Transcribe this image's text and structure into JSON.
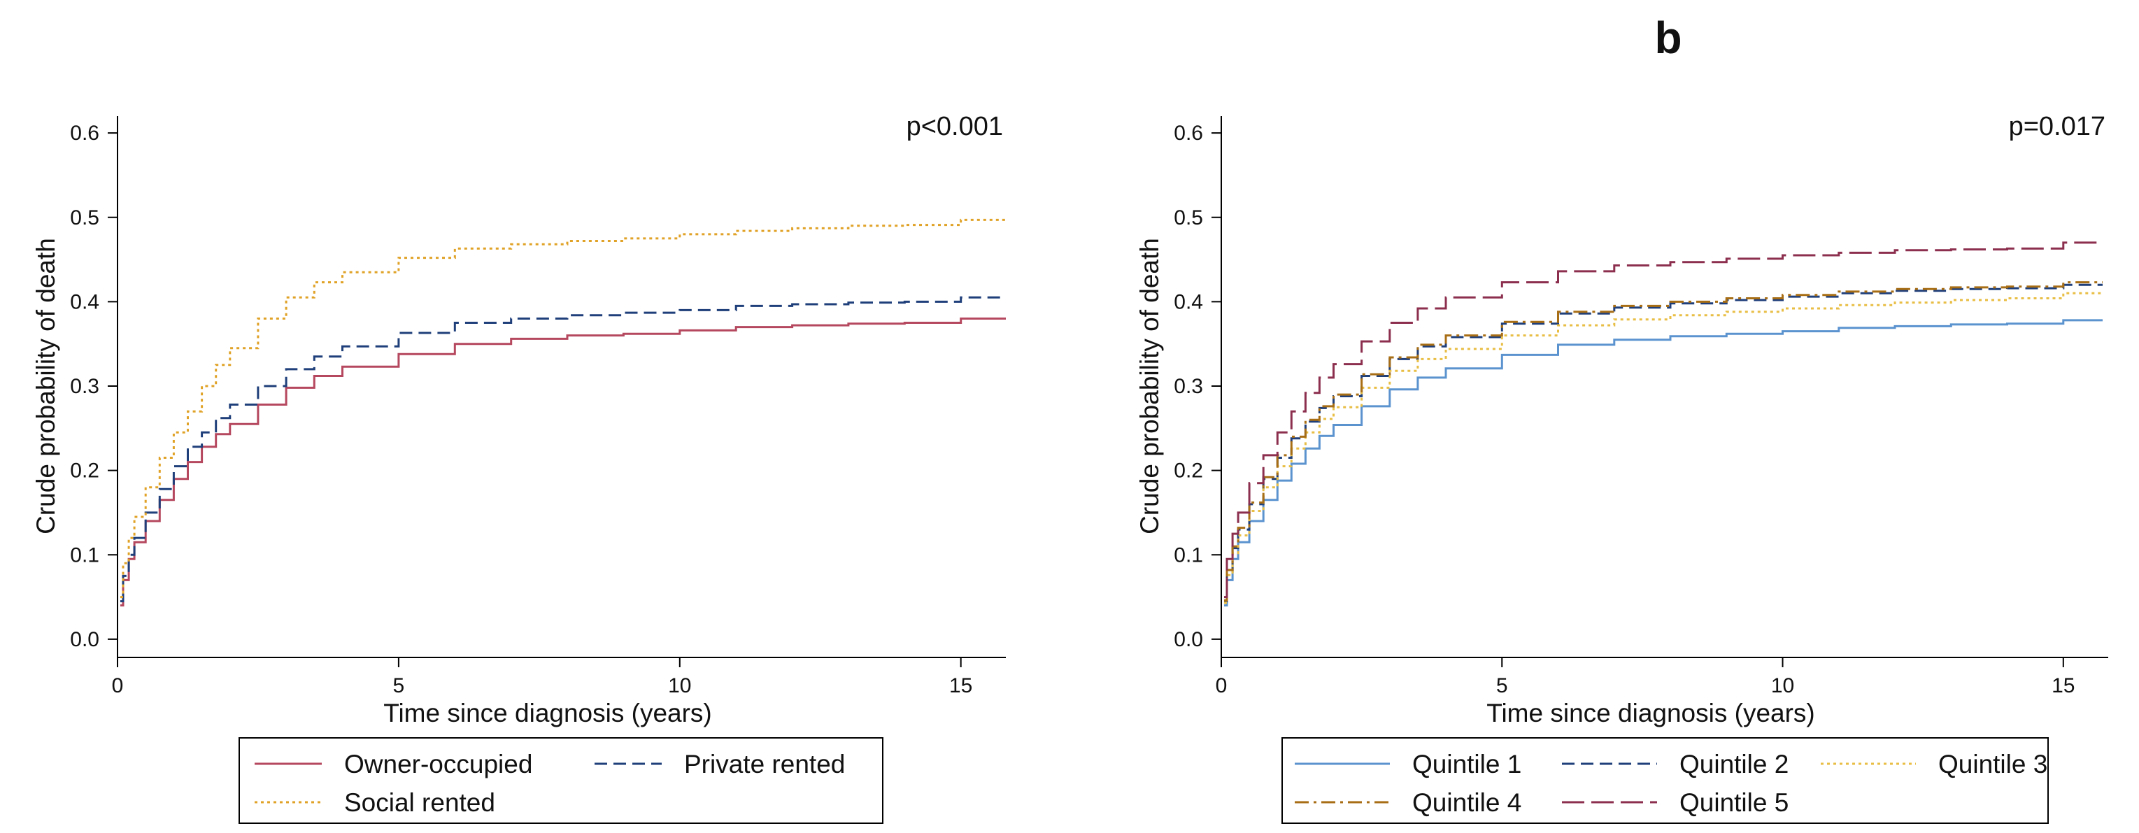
{
  "colors": {
    "owner_occupied": "#b5475e",
    "private_rented": "#1f3f7a",
    "social_rented": "#e0a227",
    "quintile_1": "#5b93cf",
    "quintile_2": "#1f3f7a",
    "quintile_3": "#e8be45",
    "quintile_4": "#a86e16",
    "quintile_5": "#8c2f4e"
  },
  "chart_data": [
    {
      "type": "line",
      "step": true,
      "panel_label": "",
      "annotation": "p<0.001",
      "xlabel": "Time since diagnosis (years)",
      "ylabel": "Crude probability of death",
      "xlim": [
        0,
        15.8
      ],
      "ylim": [
        -0.02,
        0.62
      ],
      "xticks": [
        0,
        5,
        10,
        15
      ],
      "yticks": [
        "0.0",
        "0.1",
        "0.2",
        "0.3",
        "0.4",
        "0.5",
        "0.6"
      ],
      "grid": false,
      "legend_position": "bottom",
      "legend_columns": 2,
      "series": [
        {
          "name": "Owner-occupied",
          "color": "#b5475e",
          "dash": "none",
          "x": [
            0.05,
            0.1,
            0.2,
            0.3,
            0.5,
            0.75,
            1,
            1.25,
            1.5,
            1.75,
            2,
            2.5,
            3,
            3.5,
            4,
            5,
            6,
            7,
            8,
            9,
            10,
            11,
            12,
            13,
            14,
            15,
            15.8
          ],
          "y": [
            0.04,
            0.07,
            0.095,
            0.115,
            0.14,
            0.165,
            0.19,
            0.21,
            0.228,
            0.243,
            0.255,
            0.278,
            0.298,
            0.312,
            0.323,
            0.338,
            0.35,
            0.356,
            0.36,
            0.362,
            0.366,
            0.37,
            0.372,
            0.374,
            0.375,
            0.38,
            0.38
          ]
        },
        {
          "name": "Private rented",
          "color": "#1f3f7a",
          "dash": "dashed",
          "x": [
            0.05,
            0.1,
            0.2,
            0.3,
            0.5,
            0.75,
            1,
            1.25,
            1.5,
            1.75,
            2,
            2.5,
            3,
            3.5,
            4,
            5,
            6,
            7,
            8,
            9,
            10,
            11,
            12,
            13,
            14,
            15,
            15.8
          ],
          "y": [
            0.045,
            0.075,
            0.1,
            0.12,
            0.15,
            0.178,
            0.205,
            0.228,
            0.245,
            0.262,
            0.278,
            0.3,
            0.32,
            0.335,
            0.347,
            0.363,
            0.375,
            0.38,
            0.384,
            0.387,
            0.39,
            0.395,
            0.397,
            0.399,
            0.4,
            0.405,
            0.405
          ]
        },
        {
          "name": "Social rented",
          "color": "#e0a227",
          "dash": "dotted",
          "x": [
            0.05,
            0.1,
            0.2,
            0.3,
            0.5,
            0.75,
            1,
            1.25,
            1.5,
            1.75,
            2,
            2.5,
            3,
            3.5,
            4,
            5,
            6,
            7,
            8,
            9,
            10,
            11,
            12,
            13,
            14,
            15,
            15.8
          ],
          "y": [
            0.05,
            0.09,
            0.12,
            0.145,
            0.18,
            0.215,
            0.245,
            0.27,
            0.3,
            0.325,
            0.345,
            0.38,
            0.405,
            0.423,
            0.435,
            0.452,
            0.463,
            0.468,
            0.472,
            0.475,
            0.48,
            0.484,
            0.487,
            0.49,
            0.491,
            0.497,
            0.497
          ]
        }
      ]
    },
    {
      "type": "line",
      "step": true,
      "panel_label": "b",
      "annotation": "p=0.017",
      "xlabel": "Time since diagnosis (years)",
      "ylabel": "Crude probability of death",
      "xlim": [
        0,
        15.8
      ],
      "ylim": [
        -0.02,
        0.62
      ],
      "xticks": [
        0,
        5,
        10,
        15
      ],
      "yticks": [
        "0.0",
        "0.1",
        "0.2",
        "0.3",
        "0.4",
        "0.5",
        "0.6"
      ],
      "grid": false,
      "legend_position": "bottom",
      "legend_columns": 3,
      "series": [
        {
          "name": "Quintile 1",
          "color": "#5b93cf",
          "dash": "none",
          "x": [
            0.05,
            0.1,
            0.2,
            0.3,
            0.5,
            0.75,
            1,
            1.25,
            1.5,
            1.75,
            2,
            2.5,
            3,
            3.5,
            4,
            5,
            6,
            7,
            8,
            9,
            10,
            11,
            12,
            13,
            14,
            15,
            15.7
          ],
          "y": [
            0.04,
            0.07,
            0.095,
            0.115,
            0.14,
            0.165,
            0.188,
            0.208,
            0.226,
            0.241,
            0.254,
            0.276,
            0.296,
            0.31,
            0.321,
            0.337,
            0.349,
            0.355,
            0.359,
            0.362,
            0.365,
            0.369,
            0.371,
            0.373,
            0.374,
            0.378,
            0.378
          ]
        },
        {
          "name": "Quintile 2",
          "color": "#1f3f7a",
          "dash": "dashed",
          "x": [
            0.05,
            0.1,
            0.2,
            0.3,
            0.5,
            0.75,
            1,
            1.25,
            1.5,
            1.75,
            2,
            2.5,
            3,
            3.5,
            4,
            5,
            6,
            7,
            8,
            9,
            10,
            11,
            12,
            13,
            14,
            15,
            15.7
          ],
          "y": [
            0.045,
            0.08,
            0.108,
            0.13,
            0.16,
            0.19,
            0.215,
            0.238,
            0.258,
            0.274,
            0.288,
            0.312,
            0.332,
            0.347,
            0.358,
            0.374,
            0.386,
            0.393,
            0.398,
            0.402,
            0.406,
            0.41,
            0.413,
            0.415,
            0.416,
            0.42,
            0.42
          ]
        },
        {
          "name": "Quintile 3",
          "color": "#e8be45",
          "dash": "dotted",
          "x": [
            0.05,
            0.1,
            0.2,
            0.3,
            0.5,
            0.75,
            1,
            1.25,
            1.5,
            1.75,
            2,
            2.5,
            3,
            3.5,
            4,
            5,
            6,
            7,
            8,
            9,
            10,
            11,
            12,
            13,
            14,
            15,
            15.7
          ],
          "y": [
            0.043,
            0.076,
            0.102,
            0.123,
            0.152,
            0.18,
            0.205,
            0.226,
            0.245,
            0.261,
            0.275,
            0.298,
            0.318,
            0.332,
            0.344,
            0.36,
            0.372,
            0.379,
            0.384,
            0.388,
            0.392,
            0.396,
            0.399,
            0.402,
            0.404,
            0.41,
            0.41
          ]
        },
        {
          "name": "Quintile 4",
          "color": "#a86e16",
          "dash": "dashdot",
          "x": [
            0.05,
            0.1,
            0.2,
            0.3,
            0.5,
            0.75,
            1,
            1.25,
            1.5,
            1.75,
            2,
            2.5,
            3,
            3.5,
            4,
            5,
            6,
            7,
            8,
            9,
            10,
            11,
            12,
            13,
            14,
            15,
            15.7
          ],
          "y": [
            0.046,
            0.082,
            0.11,
            0.132,
            0.162,
            0.192,
            0.218,
            0.24,
            0.26,
            0.276,
            0.29,
            0.314,
            0.334,
            0.349,
            0.36,
            0.376,
            0.388,
            0.395,
            0.4,
            0.404,
            0.408,
            0.412,
            0.415,
            0.417,
            0.418,
            0.423,
            0.423
          ]
        },
        {
          "name": "Quintile 5",
          "color": "#8c2f4e",
          "dash": "longdash",
          "x": [
            0.05,
            0.1,
            0.2,
            0.3,
            0.5,
            0.75,
            1,
            1.25,
            1.5,
            1.75,
            2,
            2.5,
            3,
            3.5,
            4,
            5,
            6,
            7,
            8,
            9,
            10,
            11,
            12,
            13,
            14,
            15,
            15.7
          ],
          "y": [
            0.05,
            0.095,
            0.125,
            0.15,
            0.185,
            0.218,
            0.245,
            0.27,
            0.292,
            0.31,
            0.326,
            0.353,
            0.375,
            0.392,
            0.405,
            0.423,
            0.436,
            0.443,
            0.447,
            0.451,
            0.455,
            0.458,
            0.461,
            0.462,
            0.463,
            0.47,
            0.47
          ]
        }
      ]
    }
  ]
}
